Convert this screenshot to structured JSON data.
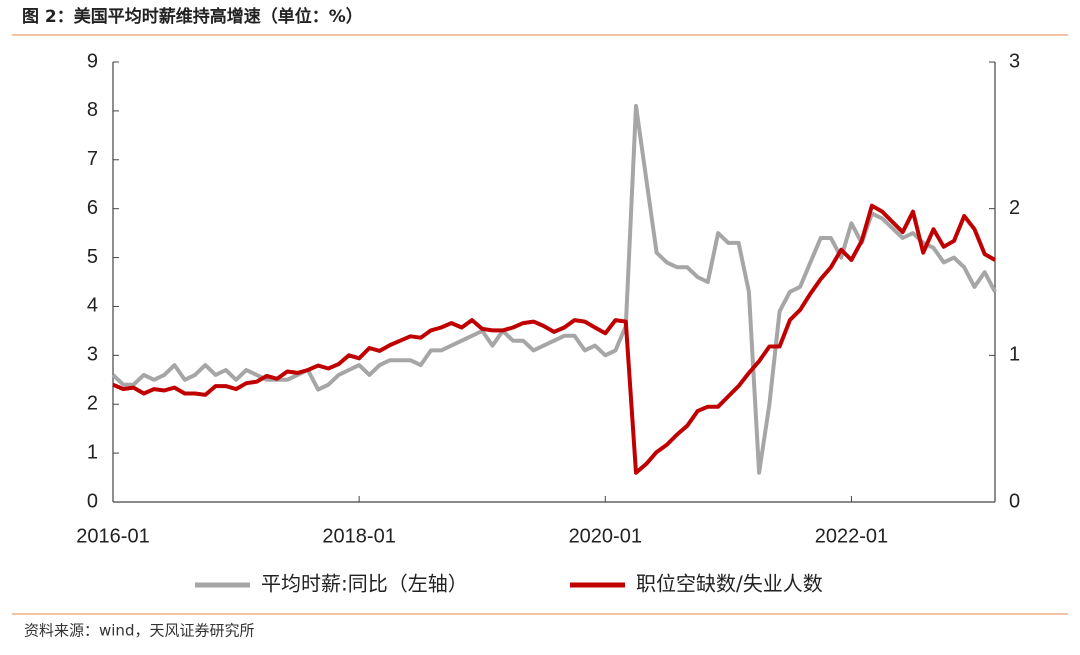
{
  "chart_data": {
    "type": "line",
    "title": "图 2：美国平均时薪维持高增速（单位：%）",
    "source": "资料来源：wind，天风证券研究所",
    "x": [
      "2016-01",
      "2016-02",
      "2016-03",
      "2016-04",
      "2016-05",
      "2016-06",
      "2016-07",
      "2016-08",
      "2016-09",
      "2016-10",
      "2016-11",
      "2016-12",
      "2017-01",
      "2017-02",
      "2017-03",
      "2017-04",
      "2017-05",
      "2017-06",
      "2017-07",
      "2017-08",
      "2017-09",
      "2017-10",
      "2017-11",
      "2017-12",
      "2018-01",
      "2018-02",
      "2018-03",
      "2018-04",
      "2018-05",
      "2018-06",
      "2018-07",
      "2018-08",
      "2018-09",
      "2018-10",
      "2018-11",
      "2018-12",
      "2019-01",
      "2019-02",
      "2019-03",
      "2019-04",
      "2019-05",
      "2019-06",
      "2019-07",
      "2019-08",
      "2019-09",
      "2019-10",
      "2019-11",
      "2019-12",
      "2020-01",
      "2020-02",
      "2020-03",
      "2020-04",
      "2020-05",
      "2020-06",
      "2020-07",
      "2020-08",
      "2020-09",
      "2020-10",
      "2020-11",
      "2020-12",
      "2021-01",
      "2021-02",
      "2021-03",
      "2021-04",
      "2021-05",
      "2021-06",
      "2021-07",
      "2021-08",
      "2021-09",
      "2021-10",
      "2021-11",
      "2021-12",
      "2022-01",
      "2022-02",
      "2022-03",
      "2022-04",
      "2022-05",
      "2022-06",
      "2022-07",
      "2022-08",
      "2022-09",
      "2022-10",
      "2022-11",
      "2022-12",
      "2023-01",
      "2023-02",
      "2023-03"
    ],
    "xlim": [
      "2016-01",
      "2023-03"
    ],
    "xticks": [
      "2016-01",
      "2018-01",
      "2020-01",
      "2022-01"
    ],
    "ylim": [
      0,
      9
    ],
    "yticks": [
      0,
      1,
      2,
      3,
      4,
      5,
      6,
      7,
      8,
      9
    ],
    "y2lim": [
      0,
      3
    ],
    "y2ticks": [
      0,
      1,
      2,
      3
    ],
    "series": [
      {
        "name": "平均时薪:同比（左轴）",
        "color": "#a6a6a6",
        "values": [
          2.6,
          2.4,
          2.4,
          2.6,
          2.5,
          2.6,
          2.8,
          2.5,
          2.6,
          2.8,
          2.6,
          2.7,
          2.5,
          2.7,
          2.6,
          2.5,
          2.5,
          2.5,
          2.6,
          2.7,
          2.3,
          2.4,
          2.6,
          2.7,
          2.8,
          2.6,
          2.8,
          2.9,
          2.9,
          2.9,
          2.8,
          3.1,
          3.1,
          3.2,
          3.3,
          3.4,
          3.5,
          3.2,
          3.5,
          3.3,
          3.3,
          3.1,
          3.2,
          3.3,
          3.4,
          3.4,
          3.1,
          3.2,
          3.0,
          3.1,
          3.6,
          8.1,
          6.6,
          5.1,
          4.9,
          4.8,
          4.8,
          4.6,
          4.5,
          5.5,
          5.3,
          5.3,
          4.3,
          0.6,
          2.0,
          3.9,
          4.3,
          4.4,
          4.9,
          5.4,
          5.4,
          5.0,
          5.7,
          5.3,
          5.9,
          5.8,
          5.6,
          5.4,
          5.5,
          5.3,
          5.2,
          4.9,
          5.0,
          4.8,
          4.4,
          4.7,
          4.3
        ]
      },
      {
        "name": "职位空缺数/失业人数",
        "color": "#c00000",
        "axis": "y2",
        "values": [
          0.8,
          0.77,
          0.78,
          0.74,
          0.77,
          0.76,
          0.78,
          0.74,
          0.74,
          0.73,
          0.79,
          0.79,
          0.77,
          0.81,
          0.82,
          0.86,
          0.84,
          0.89,
          0.88,
          0.9,
          0.93,
          0.91,
          0.94,
          1.0,
          0.98,
          1.05,
          1.03,
          1.07,
          1.1,
          1.13,
          1.12,
          1.17,
          1.19,
          1.22,
          1.19,
          1.24,
          1.18,
          1.17,
          1.17,
          1.19,
          1.22,
          1.23,
          1.2,
          1.16,
          1.19,
          1.24,
          1.23,
          1.19,
          1.15,
          1.24,
          1.23,
          0.2,
          0.26,
          0.34,
          0.39,
          0.46,
          0.52,
          0.62,
          0.65,
          0.65,
          0.72,
          0.79,
          0.88,
          0.96,
          1.06,
          1.06,
          1.24,
          1.31,
          1.42,
          1.52,
          1.6,
          1.72,
          1.65,
          1.78,
          2.02,
          1.98,
          1.91,
          1.84,
          1.98,
          1.7,
          1.86,
          1.74,
          1.78,
          1.95,
          1.86,
          1.69,
          1.65
        ]
      }
    ]
  }
}
